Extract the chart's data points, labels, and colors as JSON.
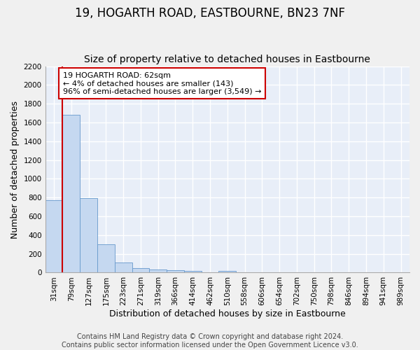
{
  "title": "19, HOGARTH ROAD, EASTBOURNE, BN23 7NF",
  "subtitle": "Size of property relative to detached houses in Eastbourne",
  "xlabel": "Distribution of detached houses by size in Eastbourne",
  "ylabel": "Number of detached properties",
  "categories": [
    "31sqm",
    "79sqm",
    "127sqm",
    "175sqm",
    "223sqm",
    "271sqm",
    "319sqm",
    "366sqm",
    "414sqm",
    "462sqm",
    "510sqm",
    "558sqm",
    "606sqm",
    "654sqm",
    "702sqm",
    "750sqm",
    "798sqm",
    "846sqm",
    "894sqm",
    "941sqm",
    "989sqm"
  ],
  "values": [
    770,
    1680,
    795,
    300,
    110,
    45,
    33,
    28,
    22,
    0,
    20,
    0,
    0,
    0,
    0,
    0,
    0,
    0,
    0,
    0,
    0
  ],
  "bar_color": "#c5d8f0",
  "bar_edge_color": "#6699cc",
  "vline_color": "#cc0000",
  "annotation_text": "19 HOGARTH ROAD: 62sqm\n← 4% of detached houses are smaller (143)\n96% of semi-detached houses are larger (3,549) →",
  "annotation_box_color": "#cc0000",
  "ylim": [
    0,
    2200
  ],
  "yticks": [
    0,
    200,
    400,
    600,
    800,
    1000,
    1200,
    1400,
    1600,
    1800,
    2000,
    2200
  ],
  "footer": "Contains HM Land Registry data © Crown copyright and database right 2024.\nContains public sector information licensed under the Open Government Licence v3.0.",
  "bg_color": "#e8eef8",
  "fig_bg_color": "#f0f0f0",
  "grid_color": "#ffffff",
  "title_fontsize": 12,
  "subtitle_fontsize": 10,
  "axis_label_fontsize": 9,
  "tick_fontsize": 7.5,
  "footer_fontsize": 7,
  "annotation_fontsize": 8
}
